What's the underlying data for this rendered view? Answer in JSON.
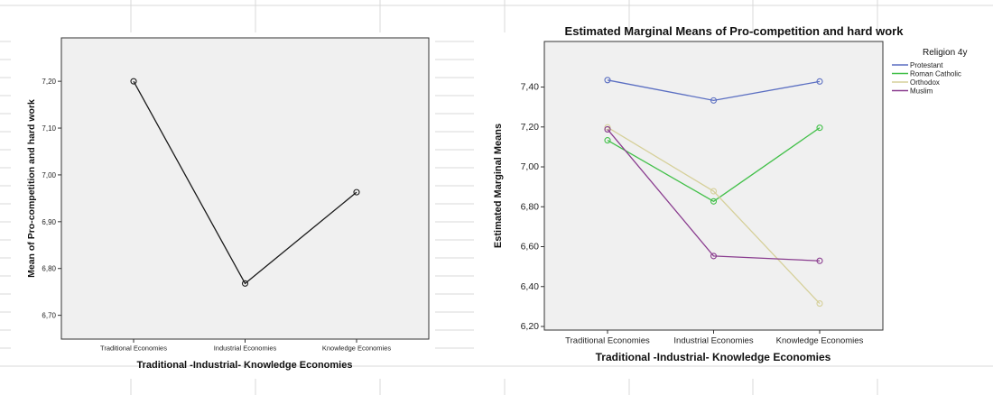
{
  "chart_data": [
    {
      "type": "line",
      "title": "",
      "xlabel": "Traditional -Industrial- Knowledge Economies",
      "ylabel": "Mean of Pro-competition and hard work",
      "categories": [
        "Traditional Economies",
        "Industrial Economies",
        "Knowledge Economies"
      ],
      "series": [
        {
          "values": [
            7.2,
            6.768,
            6.963
          ],
          "color": "#1a1a1a"
        }
      ],
      "ylim": [
        6.68,
        7.26
      ],
      "yticks": [
        "6,70",
        "6,80",
        "6,90",
        "7,00",
        "7,10",
        "7,20"
      ],
      "ytick_values": [
        6.7,
        6.8,
        6.9,
        7.0,
        7.1,
        7.2
      ],
      "grid": false,
      "plot_bg": "#f0f0f0"
    },
    {
      "type": "line",
      "title": "Estimated Marginal Means of Pro-competition and hard work",
      "xlabel": "Traditional -Industrial- Knowledge Economies",
      "ylabel": "Estimated Marginal Means",
      "categories": [
        "Traditional Economies",
        "Industrial Economies",
        "Knowledge Economies"
      ],
      "legend_title": "Religion 4y",
      "legend_position": "right",
      "series": [
        {
          "name": "Protestant",
          "values": [
            7.435,
            7.333,
            7.428
          ],
          "color": "#5b6fc2"
        },
        {
          "name": "Roman Catholic",
          "values": [
            7.133,
            6.827,
            7.196
          ],
          "color": "#43c04a"
        },
        {
          "name": "Orthodox",
          "values": [
            7.198,
            6.878,
            6.315
          ],
          "color": "#d6d09a"
        },
        {
          "name": "Muslim",
          "values": [
            7.188,
            6.553,
            6.529
          ],
          "color": "#8a3d8f"
        }
      ],
      "ylim": [
        6.2,
        7.52
      ],
      "yticks": [
        "6,20",
        "6,40",
        "6,60",
        "6,80",
        "7,00",
        "7,20",
        "7,40"
      ],
      "ytick_values": [
        6.2,
        6.4,
        6.6,
        6.8,
        7.0,
        7.2,
        7.4
      ],
      "grid": false,
      "plot_bg": "#f0f0f0"
    }
  ]
}
